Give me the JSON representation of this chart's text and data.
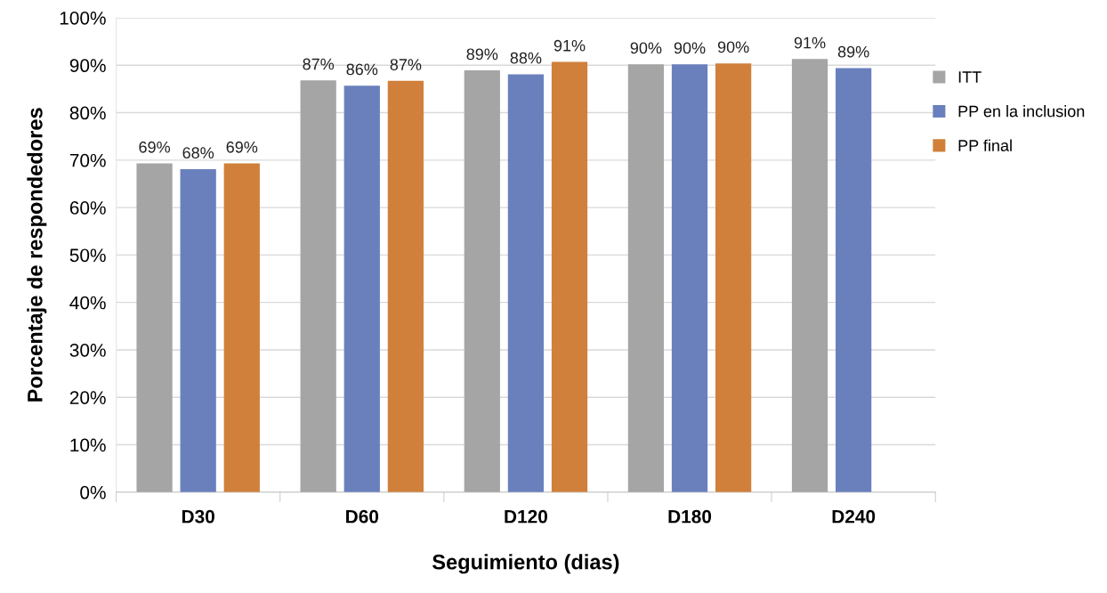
{
  "chart_data": {
    "type": "bar",
    "xlabel": "Seguimiento (dias)",
    "ylabel": "Porcentaje de respondedores",
    "categories": [
      "D30",
      "D60",
      "D120",
      "D180",
      "D240"
    ],
    "series": [
      {
        "name": "ITT",
        "color": "#a5a5a5",
        "values": [
          69.3,
          86.8,
          88.9,
          90.2,
          91.3
        ],
        "value_labels": [
          "69%",
          "87%",
          "89%",
          "90%",
          "91%"
        ]
      },
      {
        "name": "PP en la inclusion",
        "color": "#6a80bd",
        "values": [
          68.1,
          85.7,
          88.1,
          90.2,
          89.4
        ],
        "value_labels": [
          "68%",
          "86%",
          "88%",
          "90%",
          "89%"
        ]
      },
      {
        "name": "PP final",
        "color": "#d0803a",
        "values": [
          69.3,
          86.7,
          90.7,
          90.4,
          null
        ],
        "value_labels": [
          "69%",
          "87%",
          "91%",
          "90%",
          null
        ]
      }
    ],
    "ylim": [
      0,
      100
    ],
    "yticks": [
      {
        "value": 0,
        "label": "0%"
      },
      {
        "value": 10,
        "label": "10%"
      },
      {
        "value": 20,
        "label": "20%"
      },
      {
        "value": 30,
        "label": "30%"
      },
      {
        "value": 40,
        "label": "40%"
      },
      {
        "value": 50,
        "label": "50%"
      },
      {
        "value": 60,
        "label": "60%"
      },
      {
        "value": 70,
        "label": "70%"
      },
      {
        "value": 80,
        "label": "80%"
      },
      {
        "value": 90,
        "label": "90%"
      },
      {
        "value": 100,
        "label": "100%"
      }
    ],
    "grid": "y",
    "legend": "right"
  }
}
